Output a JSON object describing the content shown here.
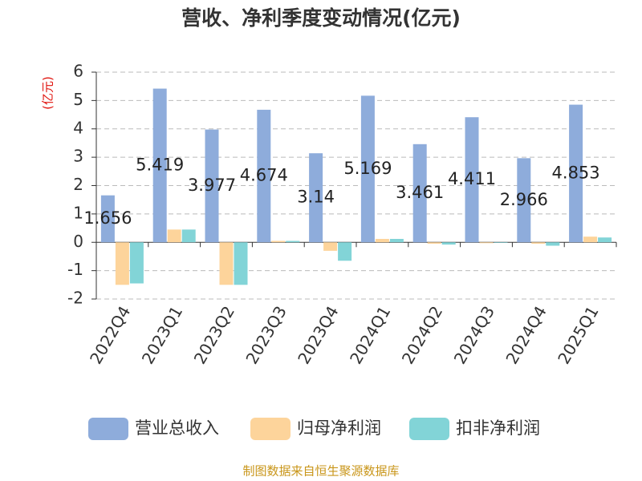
{
  "chart_data": {
    "type": "bar",
    "title": "营收、净利季度变动情况(亿元)",
    "y_label": "(亿元)",
    "source": "制图数据来自恒生聚源数据库",
    "categories": [
      "2022Q4",
      "2023Q1",
      "2023Q2",
      "2023Q3",
      "2023Q4",
      "2024Q1",
      "2024Q2",
      "2024Q3",
      "2024Q4",
      "2025Q1"
    ],
    "series": [
      {
        "name": "营业总收入",
        "color": "#8eacdb",
        "values": [
          1.656,
          5.419,
          3.977,
          4.674,
          3.14,
          5.169,
          3.461,
          4.411,
          2.966,
          4.853
        ],
        "labels": true
      },
      {
        "name": "归母净利润",
        "color": "#fdd49b",
        "values": [
          -1.5,
          0.45,
          -1.5,
          0.05,
          -0.3,
          0.12,
          -0.05,
          -0.03,
          -0.05,
          0.2
        ]
      },
      {
        "name": "扣非净利润",
        "color": "#82d4d7",
        "values": [
          -1.45,
          0.45,
          -1.5,
          0.05,
          -0.65,
          0.12,
          -0.08,
          -0.02,
          -0.12,
          0.17
        ]
      }
    ],
    "ylim": [
      -2,
      6
    ],
    "yticks": [
      -2,
      -1,
      0,
      1,
      2,
      3,
      4,
      5,
      6
    ],
    "grid": true
  }
}
